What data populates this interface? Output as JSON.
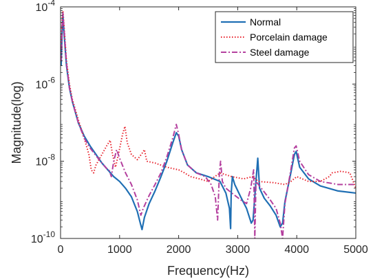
{
  "chart_data": {
    "type": "line",
    "title": "",
    "xlabel": "Frequency(Hz)",
    "ylabel": "Magnitude(log)",
    "xlim": [
      0,
      5000
    ],
    "ylim": [
      1e-10,
      0.0001
    ],
    "yscale": "log",
    "grid": false,
    "legend_position": "top-right",
    "x_ticks": [
      {
        "value": 0,
        "label": "0"
      },
      {
        "value": 1000,
        "label": "1000"
      },
      {
        "value": 2000,
        "label": "2000"
      },
      {
        "value": 3000,
        "label": "3000"
      },
      {
        "value": 4000,
        "label": "4000"
      },
      {
        "value": 5000,
        "label": "5000"
      }
    ],
    "y_ticks": [
      {
        "value": 1e-10,
        "base": "10",
        "exp": "-10"
      },
      {
        "value": 1e-08,
        "base": "10",
        "exp": "-8"
      },
      {
        "value": 1e-06,
        "base": "10",
        "exp": "-6"
      },
      {
        "value": 0.0001,
        "base": "10",
        "exp": "-4"
      }
    ],
    "series": [
      {
        "name": "Normal",
        "color": "#1f6fb4",
        "style": "solid",
        "points": [
          [
            10,
            3e-06
          ],
          [
            25,
            2e-05
          ],
          [
            40,
            6e-05
          ],
          [
            60,
            2e-05
          ],
          [
            100,
            3e-06
          ],
          [
            150,
            8e-07
          ],
          [
            200,
            3.5e-07
          ],
          [
            300,
            1e-07
          ],
          [
            400,
            4.5e-08
          ],
          [
            500,
            2.5e-08
          ],
          [
            600,
            1.5e-08
          ],
          [
            700,
            9e-09
          ],
          [
            800,
            6e-09
          ],
          [
            900,
            4e-09
          ],
          [
            1000,
            3e-09
          ],
          [
            1100,
            2e-09
          ],
          [
            1200,
            1.2e-09
          ],
          [
            1300,
            5e-10
          ],
          [
            1350,
            2.5e-10
          ],
          [
            1380,
            1.7e-10
          ],
          [
            1420,
            3.5e-10
          ],
          [
            1500,
            8e-10
          ],
          [
            1600,
            1.7e-09
          ],
          [
            1700,
            4e-09
          ],
          [
            1800,
            1e-08
          ],
          [
            1900,
            3e-08
          ],
          [
            1960,
            5.5e-08
          ],
          [
            2000,
            4.5e-08
          ],
          [
            2050,
            2e-08
          ],
          [
            2150,
            8e-09
          ],
          [
            2300,
            5e-09
          ],
          [
            2500,
            4e-09
          ],
          [
            2700,
            3e-09
          ],
          [
            2800,
            1.5e-09
          ],
          [
            2860,
            6e-10
          ],
          [
            2880,
            1.8e-10
          ],
          [
            2890,
            1.5e-09
          ],
          [
            2910,
            4e-09
          ],
          [
            2950,
            2.5e-09
          ],
          [
            3050,
            1.2e-09
          ],
          [
            3150,
            6e-10
          ],
          [
            3230,
            2.5e-10
          ],
          [
            3260,
            3e-10
          ],
          [
            3300,
            2e-09
          ],
          [
            3340,
            1.2e-08
          ],
          [
            3370,
            2e-09
          ],
          [
            3450,
            1.1e-09
          ],
          [
            3550,
            7e-10
          ],
          [
            3650,
            4e-10
          ],
          [
            3720,
            2e-10
          ],
          [
            3760,
            2.5e-10
          ],
          [
            3800,
            9e-10
          ],
          [
            3900,
            5e-09
          ],
          [
            3960,
            1.5e-08
          ],
          [
            3990,
            1.8e-08
          ],
          [
            4050,
            7e-09
          ],
          [
            4200,
            3.5e-09
          ],
          [
            4400,
            2.3e-09
          ],
          [
            4700,
            1.7e-09
          ],
          [
            5000,
            1.5e-09
          ]
        ]
      },
      {
        "name": "Porcelain damage",
        "color": "#e8202a",
        "style": "dotted",
        "points": [
          [
            10,
            1e-05
          ],
          [
            25,
            4e-05
          ],
          [
            40,
            8e-05
          ],
          [
            60,
            3e-05
          ],
          [
            100,
            4e-06
          ],
          [
            150,
            1e-06
          ],
          [
            200,
            4e-07
          ],
          [
            300,
            1.2e-07
          ],
          [
            400,
            4e-08
          ],
          [
            480,
            1.5e-08
          ],
          [
            520,
            6e-09
          ],
          [
            560,
            5e-09
          ],
          [
            600,
            8e-09
          ],
          [
            700,
            1.5e-08
          ],
          [
            780,
            2.5e-08
          ],
          [
            840,
            3.5e-08
          ],
          [
            880,
            1.5e-08
          ],
          [
            930,
            7e-09
          ],
          [
            980,
            1.5e-08
          ],
          [
            1050,
            5e-08
          ],
          [
            1090,
            8e-08
          ],
          [
            1130,
            3e-08
          ],
          [
            1200,
            1.5e-08
          ],
          [
            1300,
            1.1e-08
          ],
          [
            1380,
            1.6e-08
          ],
          [
            1420,
            2e-08
          ],
          [
            1460,
            1e-08
          ],
          [
            1600,
            9e-09
          ],
          [
            1800,
            7e-09
          ],
          [
            2000,
            6e-09
          ],
          [
            2100,
            5e-09
          ],
          [
            2200,
            4e-09
          ],
          [
            2350,
            3.5e-09
          ],
          [
            2500,
            3e-09
          ],
          [
            2700,
            5e-09
          ],
          [
            2900,
            4e-09
          ],
          [
            3100,
            3.5e-09
          ],
          [
            3250,
            4e-09
          ],
          [
            3350,
            3e-09
          ],
          [
            3600,
            2.8e-09
          ],
          [
            3800,
            2.5e-09
          ],
          [
            3900,
            3e-09
          ],
          [
            4000,
            4e-09
          ],
          [
            4200,
            3e-09
          ],
          [
            4400,
            3e-09
          ],
          [
            4550,
            4e-09
          ],
          [
            4600,
            5e-09
          ],
          [
            4750,
            5.5e-09
          ],
          [
            4900,
            5e-09
          ],
          [
            5000,
            2e-09
          ]
        ]
      },
      {
        "name": "Steel damage",
        "color": "#b43f9e",
        "style": "dashdot",
        "points": [
          [
            10,
            4e-06
          ],
          [
            25,
            3e-05
          ],
          [
            40,
            7e-05
          ],
          [
            60,
            2.5e-05
          ],
          [
            100,
            3.5e-06
          ],
          [
            150,
            8e-07
          ],
          [
            200,
            3.5e-07
          ],
          [
            300,
            1e-07
          ],
          [
            400,
            4e-08
          ],
          [
            500,
            2.2e-08
          ],
          [
            600,
            1.4e-08
          ],
          [
            700,
            9e-09
          ],
          [
            780,
            6.5e-09
          ],
          [
            820,
            6e-09
          ],
          [
            860,
            4e-09
          ],
          [
            900,
            1e-08
          ],
          [
            950,
            2e-08
          ],
          [
            1000,
            1.2e-08
          ],
          [
            1100,
            5e-09
          ],
          [
            1200,
            2.5e-09
          ],
          [
            1300,
            1e-09
          ],
          [
            1360,
            4e-10
          ],
          [
            1400,
            6e-10
          ],
          [
            1500,
            1.3e-09
          ],
          [
            1600,
            2.5e-09
          ],
          [
            1700,
            5e-09
          ],
          [
            1800,
            1.3e-08
          ],
          [
            1900,
            4e-08
          ],
          [
            1960,
            9e-08
          ],
          [
            2000,
            5e-08
          ],
          [
            2050,
            2e-08
          ],
          [
            2150,
            8e-09
          ],
          [
            2300,
            5e-09
          ],
          [
            2450,
            4e-09
          ],
          [
            2550,
            2.5e-09
          ],
          [
            2620,
            1.2e-09
          ],
          [
            2660,
            3e-10
          ],
          [
            2690,
            5e-09
          ],
          [
            2710,
            1e-08
          ],
          [
            2740,
            3e-09
          ],
          [
            2800,
            2e-09
          ],
          [
            2900,
            1.5e-09
          ],
          [
            3050,
            1e-09
          ],
          [
            3150,
            8e-10
          ],
          [
            3220,
            2e-09
          ],
          [
            3270,
            6e-09
          ],
          [
            3290,
            1e-10
          ],
          [
            3310,
            3e-09
          ],
          [
            3350,
            2.5e-09
          ],
          [
            3450,
            1.6e-09
          ],
          [
            3550,
            1e-09
          ],
          [
            3650,
            6e-10
          ],
          [
            3720,
            2.5e-10
          ],
          [
            3760,
            1e-10
          ],
          [
            3800,
            8e-10
          ],
          [
            3900,
            6e-09
          ],
          [
            3960,
            2.2e-08
          ],
          [
            3990,
            2.5e-08
          ],
          [
            4050,
            1e-08
          ],
          [
            4200,
            4.5e-09
          ],
          [
            4400,
            3e-09
          ],
          [
            4700,
            2.5e-09
          ],
          [
            5000,
            2.5e-09
          ]
        ]
      }
    ]
  }
}
